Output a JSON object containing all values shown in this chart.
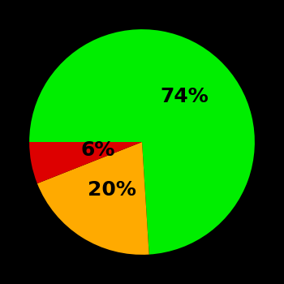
{
  "slices": [
    74,
    20,
    6
  ],
  "colors": [
    "#00ee00",
    "#ffaa00",
    "#dd0000"
  ],
  "labels": [
    "74%",
    "20%",
    "6%"
  ],
  "background_color": "#000000",
  "startangle": 180,
  "label_fontsize": 18,
  "label_fontweight": "bold",
  "label_radii": [
    0.55,
    0.5,
    0.4
  ]
}
